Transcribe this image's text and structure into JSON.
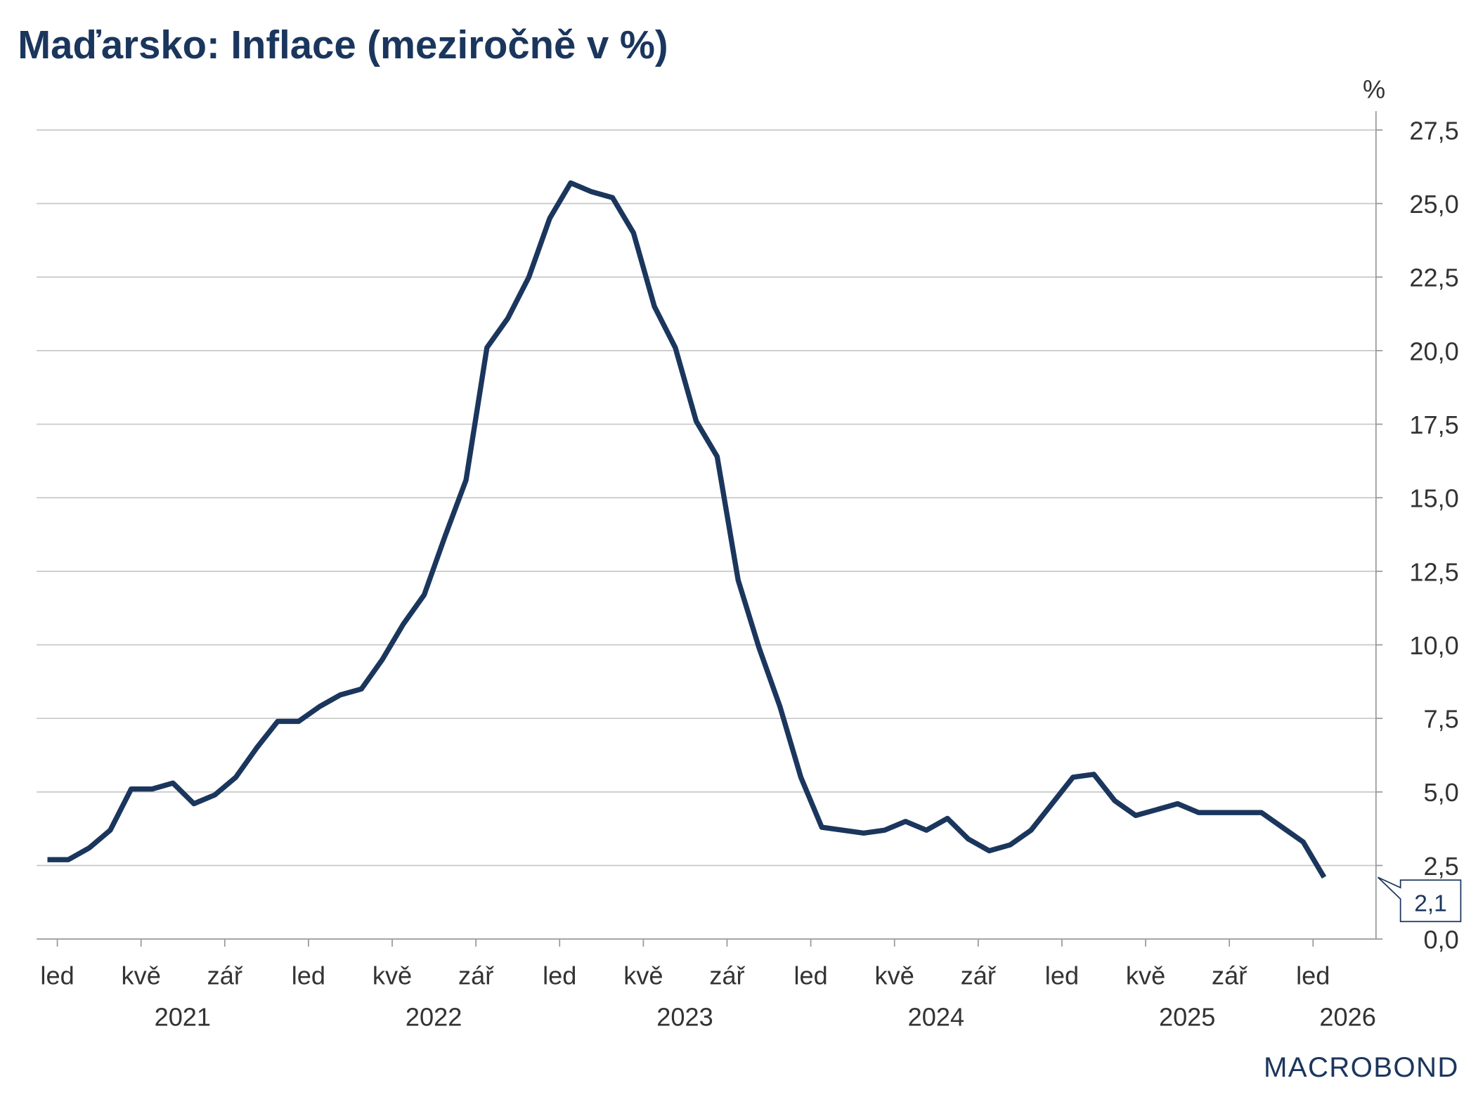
{
  "chart_data": {
    "type": "line",
    "title": "Maďarsko: Inflace (meziročně v %)",
    "ylabel": "%",
    "ylim": [
      0,
      27.5
    ],
    "yticks": [
      "0,0",
      "2,5",
      "5,0",
      "7,5",
      "10,0",
      "12,5",
      "15,0",
      "17,5",
      "20,0",
      "22,5",
      "25,0",
      "27,5"
    ],
    "ytick_values": [
      0,
      2.5,
      5,
      7.5,
      10,
      12.5,
      15,
      17.5,
      20,
      22.5,
      25,
      27.5
    ],
    "y_axis_position": "right",
    "grid": true,
    "x_start": "2020-12",
    "x_month_labels": [
      "led",
      "kvě",
      "zář",
      "led",
      "kvě",
      "zář",
      "led",
      "kvě",
      "zář",
      "led",
      "kvě",
      "zář",
      "led",
      "kvě",
      "zář",
      "led"
    ],
    "x_year_labels": [
      "2021",
      "2022",
      "2023",
      "2024",
      "2025",
      "2026"
    ],
    "series": [
      {
        "name": "Maďarsko inflace",
        "color": "#1b365d",
        "values": [
          2.7,
          2.7,
          3.1,
          3.7,
          5.1,
          5.1,
          5.3,
          4.6,
          4.9,
          5.5,
          6.5,
          7.4,
          7.4,
          7.9,
          8.3,
          8.5,
          9.5,
          10.7,
          11.7,
          13.7,
          15.6,
          20.1,
          21.1,
          22.5,
          24.5,
          25.7,
          25.4,
          25.2,
          24.0,
          21.5,
          20.1,
          17.6,
          16.4,
          12.2,
          9.9,
          7.9,
          5.5,
          3.8,
          3.7,
          3.6,
          3.7,
          4.0,
          3.7,
          4.1,
          3.4,
          3.0,
          3.2,
          3.7,
          4.6,
          5.5,
          5.6,
          4.7,
          4.2,
          4.4,
          4.6,
          4.3,
          4.3,
          4.3,
          4.3,
          3.8,
          3.3,
          2.1
        ]
      }
    ],
    "last_value_label": "2,1"
  },
  "branding": {
    "logo": "MACROBOND"
  }
}
